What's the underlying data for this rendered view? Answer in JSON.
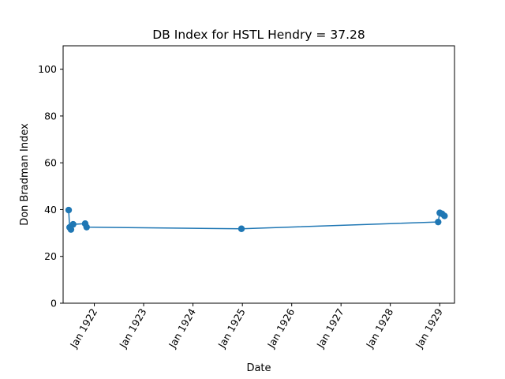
{
  "chart_data": {
    "type": "line",
    "title": "DB Index for HSTL Hendry = 37.28",
    "xlabel": "Date",
    "ylabel": "Don Bradman Index",
    "ylim": [
      0,
      110
    ],
    "yticks": [
      0,
      20,
      40,
      60,
      80,
      100
    ],
    "xlim": [
      "1921-05-15",
      "1929-04-20"
    ],
    "xticks": [
      "1922-01-01",
      "1923-01-01",
      "1924-01-01",
      "1925-01-01",
      "1926-01-01",
      "1927-01-01",
      "1928-01-01",
      "1929-01-01"
    ],
    "xtick_labels": [
      "Jan 1922",
      "Jan 1923",
      "Jan 1924",
      "Jan 1925",
      "Jan 1926",
      "Jan 1927",
      "Jan 1928",
      "Jan 1929"
    ],
    "grid": false,
    "series": [
      {
        "color": "#1f77b4",
        "marker": "circle",
        "points": [
          {
            "x": "1921-06-25",
            "y": 39.8
          },
          {
            "x": "1921-07-02",
            "y": 32.4
          },
          {
            "x": "1921-07-12",
            "y": 31.5
          },
          {
            "x": "1921-07-28",
            "y": 33.7
          },
          {
            "x": "1921-10-25",
            "y": 34.0
          },
          {
            "x": "1921-11-05",
            "y": 32.5
          },
          {
            "x": "1924-12-25",
            "y": 31.8
          },
          {
            "x": "1928-12-20",
            "y": 34.7
          },
          {
            "x": "1929-01-01",
            "y": 38.6
          },
          {
            "x": "1929-01-18",
            "y": 38.2
          },
          {
            "x": "1929-02-05",
            "y": 37.3
          }
        ]
      }
    ]
  }
}
